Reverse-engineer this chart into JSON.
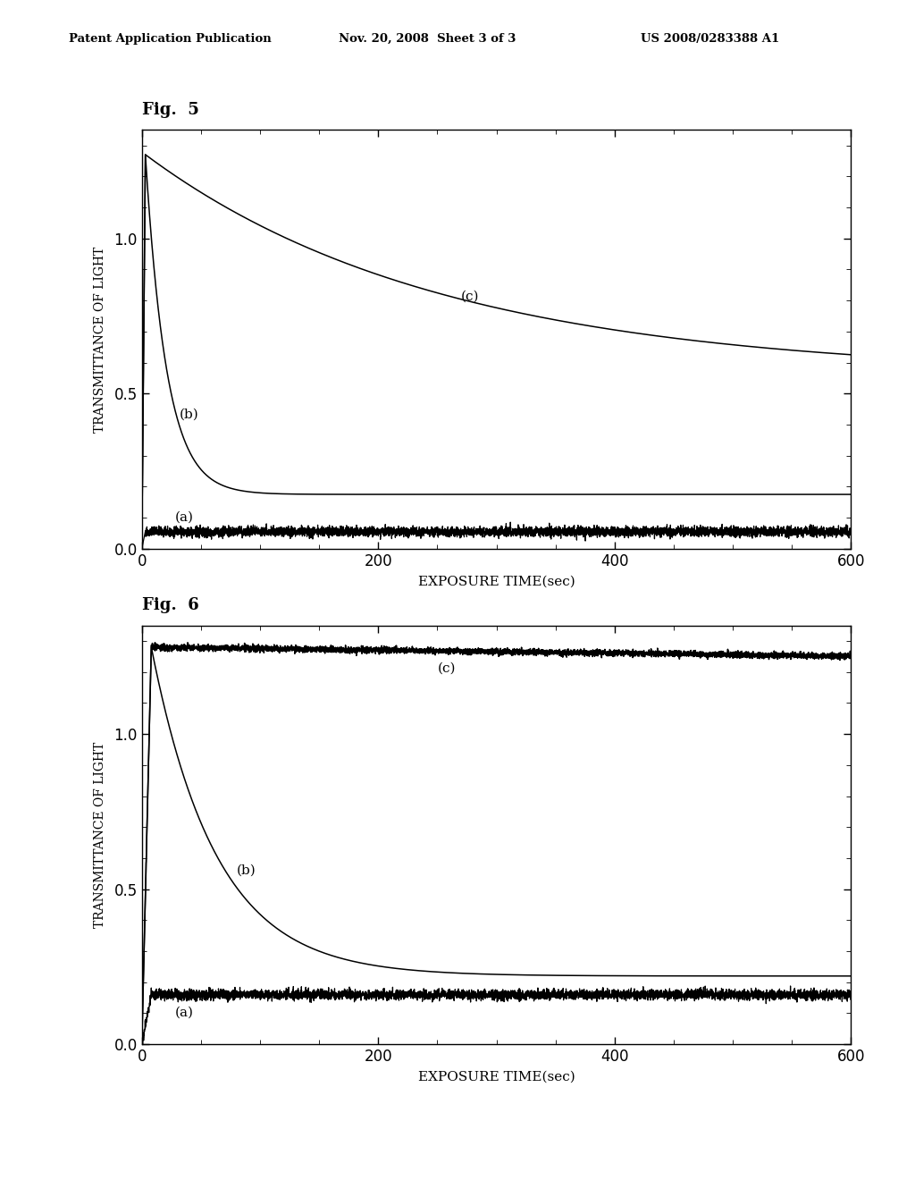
{
  "header_left": "Patent Application Publication",
  "header_mid": "Nov. 20, 2008  Sheet 3 of 3",
  "header_right": "US 2008/0283388 A1",
  "fig5_label": "Fig.  5",
  "fig6_label": "Fig.  6",
  "xlabel": "EXPOSURE TIME(sec)",
  "ylabel": "TRANSMITTANCE OF LIGHT",
  "xlim": [
    0,
    600
  ],
  "ylim": [
    0,
    1.35
  ],
  "xticks": [
    0,
    200,
    400,
    600
  ],
  "yticks": [
    0,
    0.5,
    1
  ],
  "background_color": "#ffffff",
  "fig5": {
    "curve_a_flat": 0.055,
    "curve_b_peak": 1.27,
    "curve_b_tau": 18,
    "curve_b_final": 0.175,
    "curve_c_peak": 1.27,
    "curve_c_tau": 250,
    "curve_c_final": 0.56,
    "peak_t": 3,
    "label_a": [
      28,
      0.09
    ],
    "label_b": [
      32,
      0.42
    ],
    "label_c": [
      270,
      0.8
    ]
  },
  "fig6": {
    "curve_a_flat": 0.16,
    "curve_b_peak": 1.28,
    "curve_b_tau": 55,
    "curve_b_final": 0.22,
    "curve_c_peak": 1.28,
    "curve_c_tau": 5000,
    "curve_c_final": 1.02,
    "peak_t": 8,
    "label_a": [
      28,
      0.09
    ],
    "label_b": [
      80,
      0.55
    ],
    "label_c": [
      250,
      1.2
    ]
  }
}
